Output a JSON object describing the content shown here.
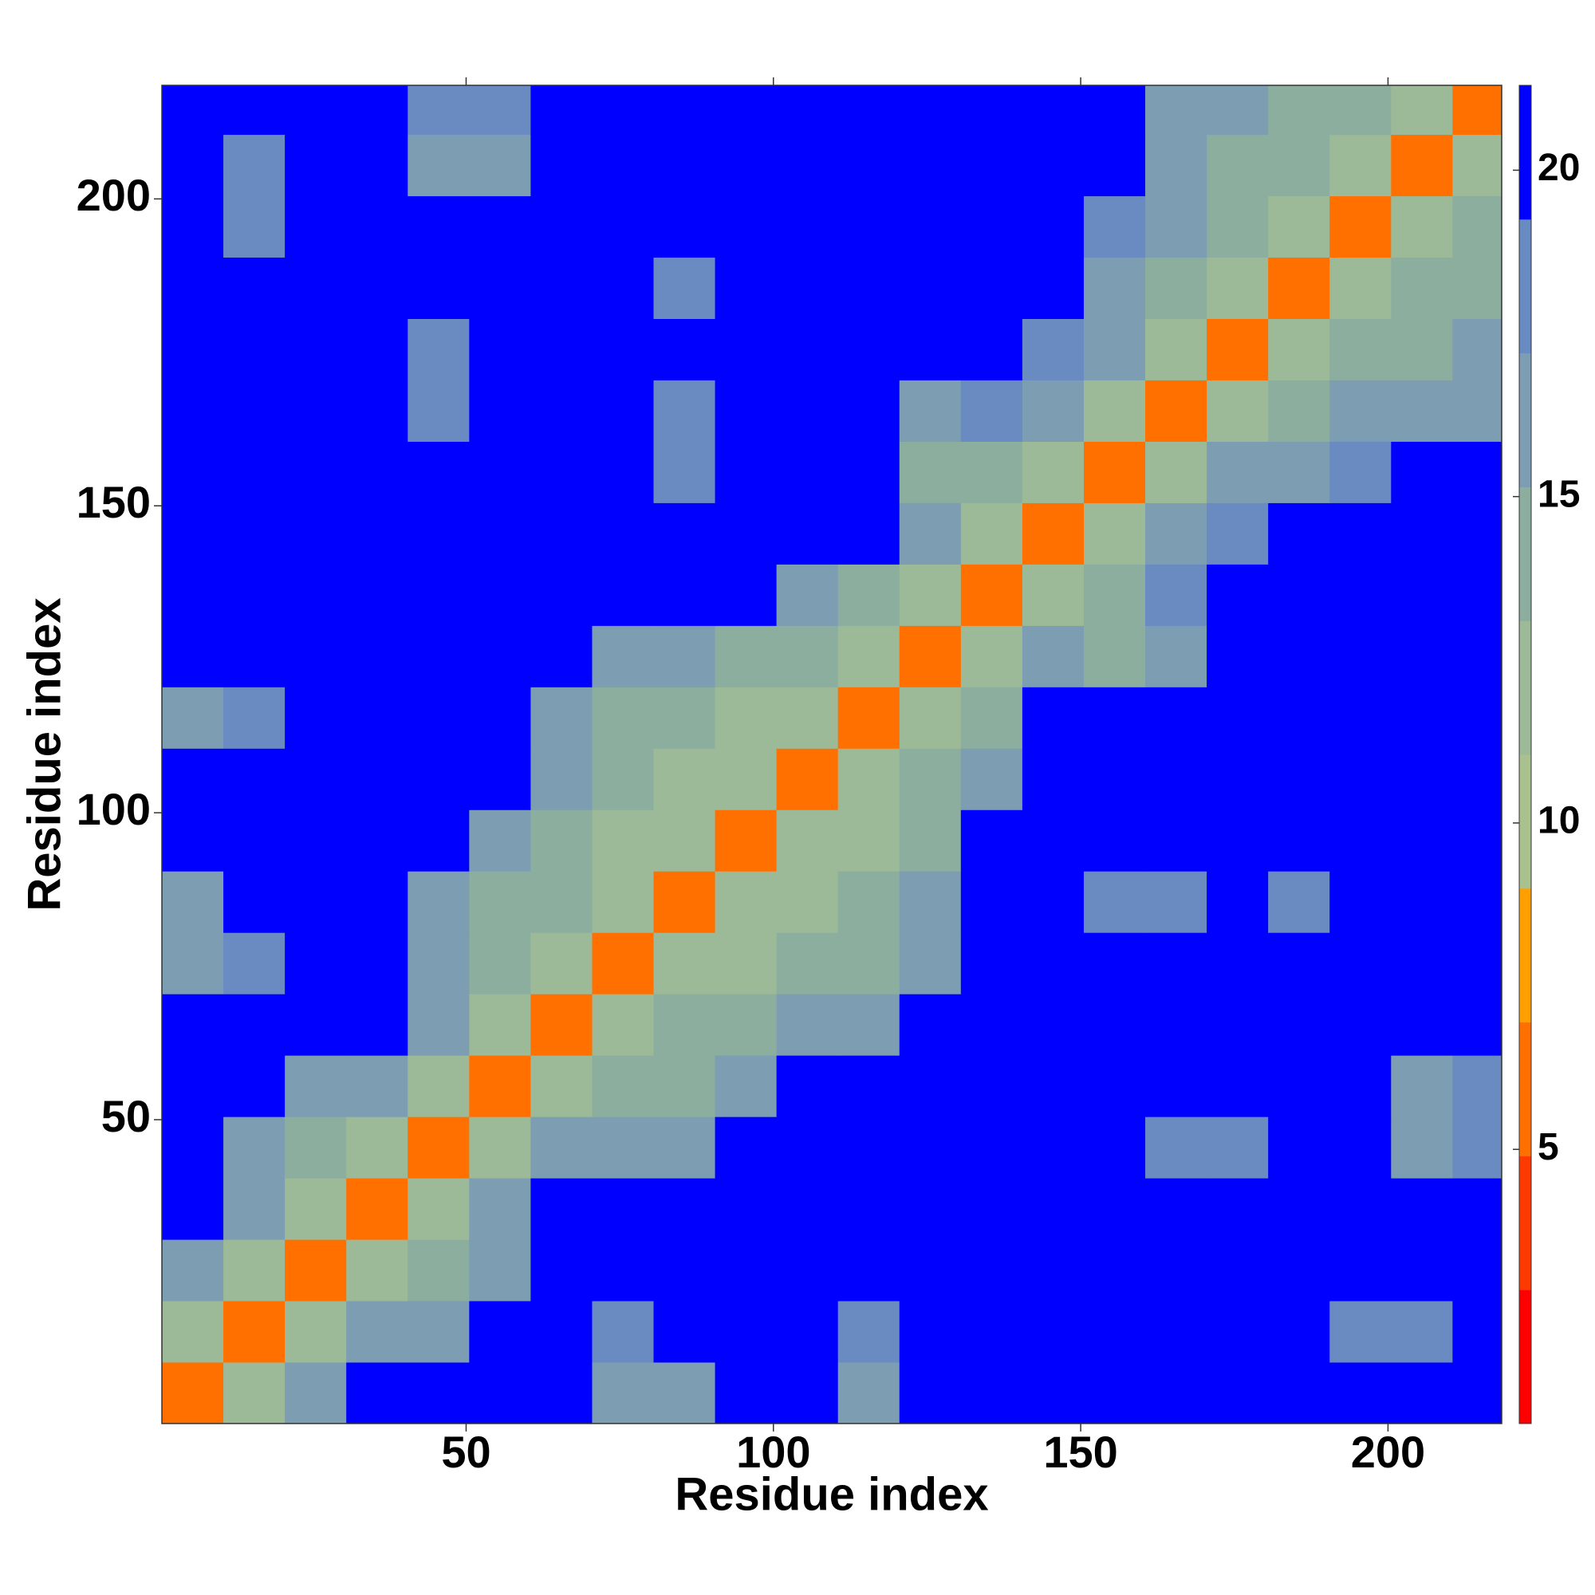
{
  "chart_data": {
    "type": "heatmap",
    "xlabel": "Residue index",
    "ylabel": "Residue index",
    "xbins": [
      0.5,
      10.5,
      20.5,
      30.5,
      40.5,
      50.5,
      60.5,
      70.5,
      80.5,
      90.5,
      100.5,
      110.5,
      120.5,
      130.5,
      140.5,
      150.5,
      160.5,
      170.5,
      180.5,
      190.5,
      200.5,
      210.5,
      218.5
    ],
    "ybins": [
      0.5,
      10.5,
      20.5,
      30.5,
      40.5,
      50.5,
      60.5,
      70.5,
      80.5,
      90.5,
      100.5,
      110.5,
      120.5,
      130.5,
      140.5,
      150.5,
      160.5,
      170.5,
      180.5,
      190.5,
      200.5,
      210.5,
      218.5
    ],
    "xlim": [
      0.5,
      218.5
    ],
    "ylim": [
      0.5,
      218.5
    ],
    "xticks": [
      50,
      100,
      150,
      200
    ],
    "yticks": [
      50,
      100,
      150,
      200
    ],
    "clim": [
      0.8,
      21.3
    ],
    "cticks": [
      5,
      10,
      15,
      20
    ],
    "colors": [
      "#ff0000",
      "#ff3a00",
      "#ff7000",
      "#ffa000",
      "#a9c08f",
      "#9cba97",
      "#8cae9f",
      "#7c9db2",
      "#6a8bc2",
      "#0000ff"
    ],
    "values": [
      [
        6,
        13,
        17,
        21,
        21,
        21,
        21,
        17,
        17,
        21,
        21,
        17,
        21,
        21,
        21,
        21,
        21,
        21,
        21,
        21,
        21,
        21
      ],
      [
        13,
        6,
        13,
        16,
        16,
        21,
        21,
        18,
        21,
        21,
        21,
        18,
        21,
        21,
        21,
        21,
        21,
        21,
        21,
        19,
        19,
        21
      ],
      [
        17,
        13,
        6,
        13,
        14,
        17,
        21,
        21,
        21,
        21,
        21,
        21,
        21,
        21,
        21,
        21,
        21,
        21,
        21,
        21,
        21,
        21
      ],
      [
        21,
        16,
        13,
        6,
        13,
        16,
        21,
        21,
        21,
        21,
        21,
        21,
        21,
        21,
        21,
        21,
        21,
        21,
        21,
        21,
        21,
        21
      ],
      [
        21,
        16,
        14,
        13,
        6,
        13,
        17,
        17,
        17,
        21,
        21,
        21,
        21,
        21,
        21,
        21,
        19,
        19,
        21,
        21,
        17,
        18
      ],
      [
        21,
        21,
        17,
        16,
        13,
        6,
        13,
        14,
        15,
        16,
        21,
        21,
        21,
        21,
        21,
        21,
        21,
        21,
        21,
        21,
        17,
        18
      ],
      [
        21,
        21,
        21,
        21,
        17,
        13,
        6,
        13,
        14,
        14,
        16,
        17,
        21,
        21,
        21,
        21,
        21,
        21,
        21,
        21,
        21,
        21
      ],
      [
        17,
        18,
        21,
        21,
        17,
        14,
        13,
        6,
        13,
        13,
        14,
        15,
        16,
        21,
        21,
        21,
        21,
        21,
        21,
        21,
        21,
        21
      ],
      [
        17,
        21,
        21,
        21,
        17,
        15,
        14,
        13,
        6,
        13,
        13,
        14,
        16,
        21,
        21,
        19,
        19,
        21,
        19,
        21,
        21,
        21
      ],
      [
        21,
        21,
        21,
        21,
        21,
        16,
        14,
        13,
        13,
        6,
        13,
        13,
        15,
        21,
        21,
        21,
        21,
        21,
        21,
        21,
        21,
        21
      ],
      [
        21,
        21,
        21,
        21,
        21,
        21,
        16,
        14,
        13,
        13,
        6,
        13,
        14,
        16,
        21,
        21,
        21,
        21,
        21,
        21,
        21,
        21
      ],
      [
        17,
        18,
        21,
        21,
        21,
        21,
        17,
        15,
        14,
        13,
        13,
        6,
        13,
        15,
        21,
        21,
        21,
        21,
        21,
        21,
        21,
        21
      ],
      [
        21,
        21,
        21,
        21,
        21,
        21,
        21,
        16,
        16,
        15,
        14,
        13,
        6,
        13,
        16,
        15,
        17,
        21,
        21,
        21,
        21,
        21
      ],
      [
        21,
        21,
        21,
        21,
        21,
        21,
        21,
        21,
        21,
        21,
        16,
        15,
        13,
        6,
        13,
        15,
        18,
        21,
        21,
        21,
        21,
        21
      ],
      [
        21,
        21,
        21,
        21,
        21,
        21,
        21,
        21,
        21,
        21,
        21,
        21,
        16,
        13,
        6,
        13,
        16,
        18,
        21,
        21,
        21,
        21
      ],
      [
        21,
        21,
        21,
        21,
        21,
        21,
        21,
        21,
        19,
        21,
        21,
        21,
        15,
        15,
        13,
        6,
        13,
        16,
        17,
        18,
        21,
        21
      ],
      [
        21,
        21,
        21,
        21,
        19,
        21,
        21,
        21,
        19,
        21,
        21,
        21,
        17,
        18,
        16,
        13,
        6,
        13,
        15,
        16,
        16,
        17
      ],
      [
        21,
        21,
        21,
        21,
        19,
        21,
        21,
        21,
        21,
        21,
        21,
        21,
        21,
        21,
        18,
        16,
        13,
        6,
        13,
        14,
        15,
        16
      ],
      [
        21,
        21,
        21,
        21,
        21,
        21,
        21,
        21,
        19,
        21,
        21,
        21,
        21,
        21,
        21,
        17,
        15,
        13,
        6,
        13,
        14,
        15
      ],
      [
        21,
        19,
        21,
        21,
        21,
        21,
        21,
        21,
        21,
        21,
        21,
        21,
        21,
        21,
        21,
        18,
        16,
        14,
        13,
        6,
        13,
        14
      ],
      [
        21,
        19,
        21,
        21,
        17,
        17,
        21,
        21,
        21,
        21,
        21,
        21,
        21,
        21,
        21,
        21,
        16,
        15,
        14,
        13,
        6,
        13
      ],
      [
        21,
        21,
        21,
        21,
        18,
        18,
        21,
        21,
        21,
        21,
        21,
        21,
        21,
        21,
        21,
        21,
        17,
        16,
        15,
        14,
        13,
        6
      ]
    ]
  }
}
